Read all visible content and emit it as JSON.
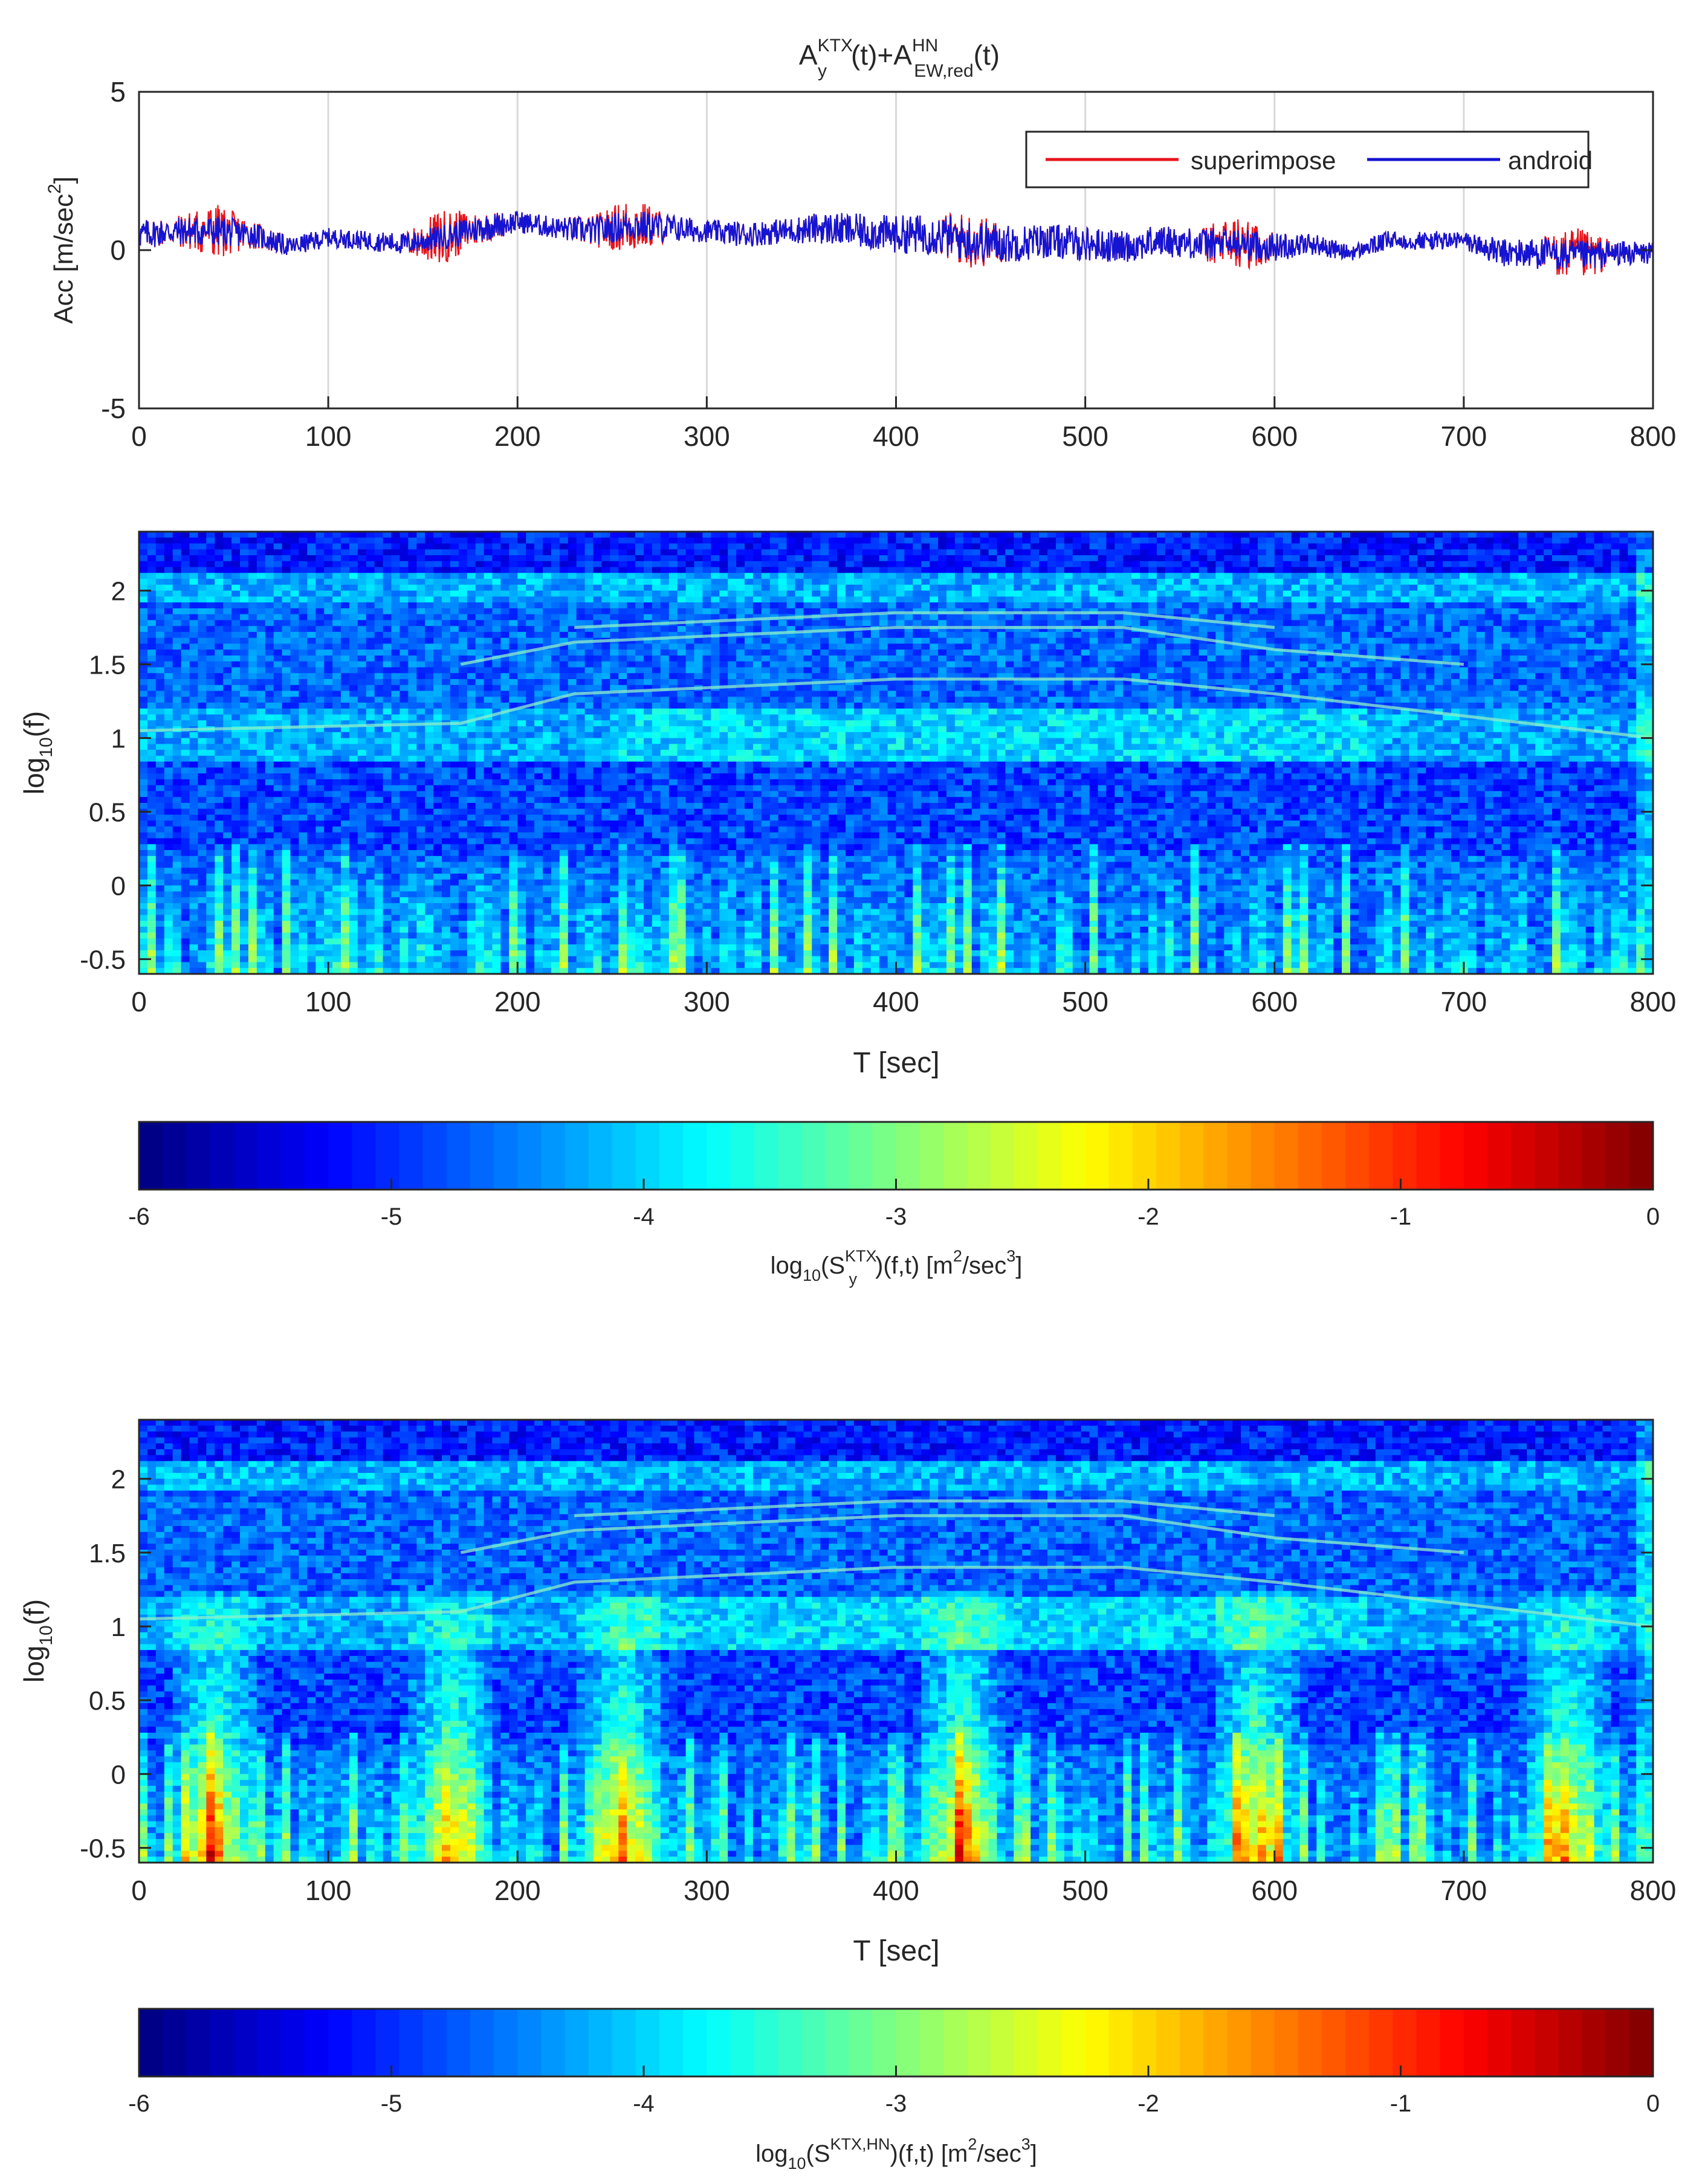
{
  "colors": {
    "superimpose": "#e8141c",
    "android": "#1414d2",
    "axes": "#262626",
    "grid": "#d9d9d9"
  },
  "chart_data": [
    {
      "type": "line",
      "title": {
        "base1": "A",
        "sup1": "KTX",
        "sub1": "y",
        "mid": "(t)+A",
        "sup2": "HN",
        "sub2": "EW,red",
        "end": "(t)"
      },
      "ylabel": {
        "main": "Acc [m/sec",
        "sup": "2",
        "end": "]"
      },
      "xlim": [
        0,
        800
      ],
      "ylim": [
        -5,
        5
      ],
      "xticks": [
        "0",
        "100",
        "200",
        "300",
        "400",
        "500",
        "600",
        "700",
        "800"
      ],
      "yticks": [
        "5",
        "0",
        "-5"
      ],
      "xgrid": true,
      "legend": {
        "position": "top-right"
      },
      "series": [
        {
          "name": "superimpose",
          "color": "#e8141c",
          "x": [
            0,
            20,
            40,
            60,
            80,
            100,
            120,
            140,
            160,
            180,
            200,
            220,
            240,
            260,
            280,
            300,
            320,
            340,
            360,
            380,
            400,
            420,
            440,
            460,
            480,
            500,
            520,
            540,
            560,
            580,
            600,
            620,
            640,
            660,
            680,
            700,
            720,
            740,
            760,
            780,
            800
          ],
          "mean": [
            0.5,
            0.6,
            0.6,
            0.5,
            0.1,
            0.4,
            0.3,
            0.2,
            0.4,
            0.7,
            0.9,
            0.7,
            0.6,
            0.8,
            0.7,
            0.6,
            0.5,
            0.6,
            0.7,
            0.6,
            0.5,
            0.5,
            0.3,
            0.2,
            0.3,
            0.2,
            0.1,
            0.3,
            0.2,
            0.2,
            0.1,
            0.2,
            -0.1,
            0.3,
            0.3,
            0.3,
            -0.1,
            -0.1,
            -0.2,
            -0.1,
            -0.1
          ],
          "amp": [
            0.45,
            0.5,
            0.9,
            0.45,
            0.3,
            0.3,
            0.3,
            0.35,
            0.9,
            0.5,
            0.35,
            0.35,
            0.5,
            0.9,
            0.45,
            0.35,
            0.4,
            0.4,
            0.5,
            0.55,
            0.6,
            0.65,
            0.9,
            0.6,
            0.55,
            0.55,
            0.5,
            0.5,
            0.5,
            0.9,
            0.45,
            0.35,
            0.25,
            0.3,
            0.3,
            0.3,
            0.45,
            0.5,
            0.9,
            0.4,
            0.35
          ]
        },
        {
          "name": "android",
          "color": "#1414d2",
          "x": [
            0,
            20,
            40,
            60,
            80,
            100,
            120,
            140,
            160,
            180,
            200,
            220,
            240,
            260,
            280,
            300,
            320,
            340,
            360,
            380,
            400,
            420,
            440,
            460,
            480,
            500,
            520,
            540,
            560,
            580,
            600,
            620,
            640,
            660,
            680,
            700,
            720,
            740,
            760,
            780,
            800
          ],
          "mean": [
            0.5,
            0.6,
            0.6,
            0.5,
            0.1,
            0.4,
            0.3,
            0.2,
            0.4,
            0.7,
            0.9,
            0.7,
            0.6,
            0.8,
            0.7,
            0.6,
            0.5,
            0.6,
            0.7,
            0.6,
            0.5,
            0.5,
            0.3,
            0.2,
            0.3,
            0.2,
            0.1,
            0.3,
            0.2,
            0.2,
            0.1,
            0.2,
            -0.1,
            0.3,
            0.3,
            0.3,
            -0.1,
            -0.1,
            -0.2,
            -0.1,
            -0.1
          ],
          "amp": [
            0.45,
            0.45,
            0.5,
            0.4,
            0.3,
            0.3,
            0.3,
            0.35,
            0.4,
            0.45,
            0.35,
            0.35,
            0.45,
            0.5,
            0.45,
            0.35,
            0.4,
            0.4,
            0.5,
            0.55,
            0.6,
            0.65,
            0.7,
            0.6,
            0.55,
            0.55,
            0.5,
            0.5,
            0.5,
            0.5,
            0.45,
            0.35,
            0.25,
            0.3,
            0.3,
            0.3,
            0.45,
            0.5,
            0.5,
            0.4,
            0.35
          ]
        }
      ]
    },
    {
      "type": "heatmap",
      "xlabel": "T [sec]",
      "ylabel": {
        "main": "log",
        "sub": "10",
        "end": "(f)"
      },
      "xlim": [
        0,
        800
      ],
      "ylim": [
        -0.6,
        2.4
      ],
      "xticks": [
        "0",
        "100",
        "200",
        "300",
        "400",
        "500",
        "600",
        "700",
        "800"
      ],
      "yticks": [
        "2",
        "1.5",
        "1",
        "0.5",
        "0",
        "-0.5"
      ],
      "clim": [
        -6,
        0
      ],
      "base_level": -4.7,
      "event_times": [],
      "ridge_curves": [
        {
          "x": [
            0,
            170,
            230,
            400,
            520,
            600,
            700,
            800
          ],
          "y": [
            1.05,
            1.1,
            1.3,
            1.4,
            1.4,
            1.3,
            1.15,
            1.0
          ]
        },
        {
          "x": [
            170,
            230,
            400,
            520,
            600,
            700
          ],
          "y": [
            1.5,
            1.65,
            1.75,
            1.75,
            1.6,
            1.5
          ]
        },
        {
          "x": [
            230,
            400,
            520,
            600
          ],
          "y": [
            1.75,
            1.85,
            1.85,
            1.75
          ]
        }
      ],
      "colorbar": {
        "ticks": [
          "-6",
          "-5",
          "-4",
          "-3",
          "-2",
          "-1",
          "0"
        ],
        "label": {
          "main": "log",
          "sub": "10",
          "mid": "(S",
          "sup": "KTX",
          "sub2": "y",
          "end": ")(f,t) [m",
          "sup2": "2",
          "end2": "/sec",
          "sup3": "3",
          "end3": "]"
        }
      }
    },
    {
      "type": "heatmap",
      "xlabel": "T [sec]",
      "ylabel": {
        "main": "log",
        "sub": "10",
        "end": "(f)"
      },
      "xlim": [
        0,
        800
      ],
      "ylim": [
        -0.6,
        2.4
      ],
      "xticks": [
        "0",
        "100",
        "200",
        "300",
        "400",
        "500",
        "600",
        "700",
        "800"
      ],
      "yticks": [
        "2",
        "1.5",
        "1",
        "0.5",
        "0",
        "-0.5"
      ],
      "clim": [
        -6,
        0
      ],
      "base_level": -4.7,
      "event_times": [
        40,
        165,
        255,
        435,
        590,
        755
      ],
      "ridge_curves": [
        {
          "x": [
            0,
            170,
            230,
            400,
            520,
            600,
            700,
            800
          ],
          "y": [
            1.05,
            1.1,
            1.3,
            1.4,
            1.4,
            1.3,
            1.15,
            1.0
          ]
        },
        {
          "x": [
            170,
            230,
            400,
            520,
            600,
            700
          ],
          "y": [
            1.5,
            1.65,
            1.75,
            1.75,
            1.6,
            1.5
          ]
        },
        {
          "x": [
            230,
            400,
            520,
            600
          ],
          "y": [
            1.75,
            1.85,
            1.85,
            1.75
          ]
        }
      ],
      "colorbar": {
        "ticks": [
          "-6",
          "-5",
          "-4",
          "-3",
          "-2",
          "-1",
          "0"
        ],
        "label": {
          "main": "log",
          "sub": "10",
          "mid": "(S",
          "sup": "KTX,HN",
          "sub2": "",
          "end": ")(f,t) [m",
          "sup2": "2",
          "end2": "/sec",
          "sup3": "3",
          "end3": "]"
        }
      }
    }
  ]
}
